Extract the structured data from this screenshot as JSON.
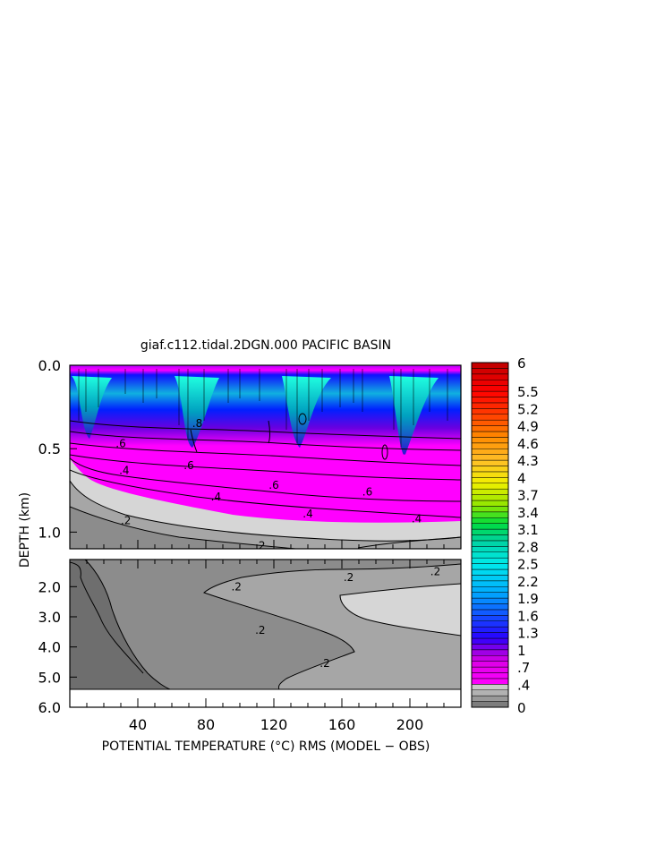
{
  "chart_data": {
    "type": "heatmap",
    "title": "giaf.c112.tidal.2DGN.000 PACIFIC BASIN",
    "xlabel": "POTENTIAL TEMPERATURE (°C) RMS (MODEL − OBS)",
    "ylabel": "DEPTH (km)",
    "xlim": [
      0,
      230
    ],
    "x_ticks": [
      40,
      80,
      120,
      160,
      200
    ],
    "upper_panel": {
      "ylim": [
        0.0,
        1.1
      ],
      "y_ticks": [
        "0.0",
        "0.5",
        "1.0"
      ]
    },
    "lower_panel": {
      "ylim": [
        1.1,
        6.0
      ],
      "y_ticks": [
        "2.0",
        "3.0",
        "4.0",
        "5.0",
        "6.0"
      ]
    },
    "colorbar": {
      "min": 0,
      "max": 6,
      "labels": [
        "0",
        ".4",
        ".7",
        "1",
        "1.3",
        "1.6",
        "1.9",
        "2.2",
        "2.5",
        "2.8",
        "3.1",
        "3.4",
        "3.7",
        "4",
        "4.3",
        "4.6",
        "4.9",
        "5.2",
        "5.5",
        "6"
      ],
      "label_values": [
        0,
        0.4,
        0.7,
        1.0,
        1.3,
        1.6,
        1.9,
        2.2,
        2.5,
        2.8,
        3.1,
        3.4,
        3.7,
        4.0,
        4.3,
        4.6,
        4.9,
        5.2,
        5.5,
        6.0
      ]
    },
    "contour_labels": [
      {
        "text": ".6",
        "x": 30,
        "y": 0.47
      },
      {
        "text": ".8",
        "x": 75,
        "y": 0.35
      },
      {
        "text": ".6",
        "x": 70,
        "y": 0.6
      },
      {
        "text": ".4",
        "x": 32,
        "y": 0.63
      },
      {
        "text": ".4",
        "x": 86,
        "y": 0.79
      },
      {
        "text": ".6",
        "x": 120,
        "y": 0.72
      },
      {
        "text": ".6",
        "x": 175,
        "y": 0.76
      },
      {
        "text": ".4",
        "x": 140,
        "y": 0.89
      },
      {
        "text": ".4",
        "x": 204,
        "y": 0.92
      },
      {
        "text": ".2",
        "x": 33,
        "y": 0.93
      },
      {
        "text": ".2",
        "x": 112,
        "y": 1.08
      },
      {
        "text": ".2",
        "x": 98,
        "y": 2.0
      },
      {
        "text": ".2",
        "x": 164,
        "y": 1.7
      },
      {
        "text": ".2",
        "x": 215,
        "y": 1.5
      },
      {
        "text": ".2",
        "x": 112,
        "y": 3.45
      },
      {
        "text": ".2",
        "x": 150,
        "y": 4.55
      }
    ],
    "colors": {
      "deep_gray": "#6e6e6e",
      "mid_gray": "#a6a6a6",
      "light_gray": "#d6d6d6",
      "magenta": "#ff00ff",
      "purple": "#8a2be2",
      "blue": "#0000ff",
      "cyan": "#00e5e5"
    }
  }
}
